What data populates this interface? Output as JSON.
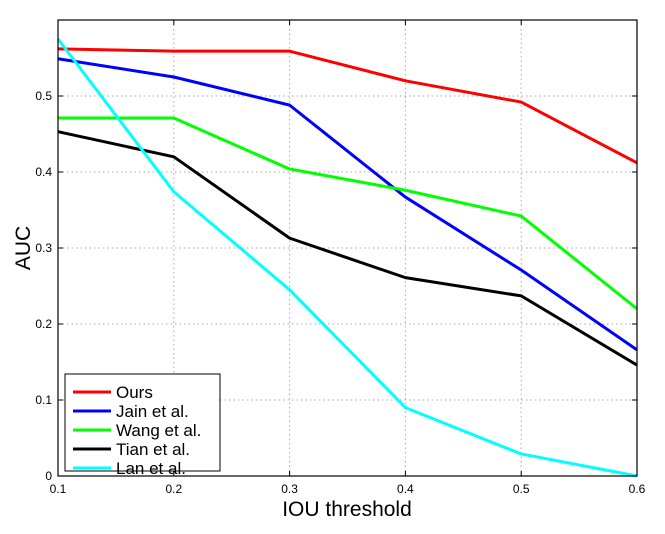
{
  "chart_data": {
    "type": "line",
    "title": "",
    "xlabel": "IOU threshold",
    "ylabel": "AUC",
    "xlim": [
      0.1,
      0.6
    ],
    "ylim": [
      0,
      0.6
    ],
    "grid": true,
    "legend_position": "bottom-left",
    "x": [
      0.1,
      0.2,
      0.3,
      0.4,
      0.5,
      0.6
    ],
    "xticks": [
      "0.1",
      "0.2",
      "0.3",
      "0.4",
      "0.5",
      "0.6"
    ],
    "yticks": [
      "0",
      "0.1",
      "0.2",
      "0.3",
      "0.4",
      "0.5"
    ],
    "series": [
      {
        "name": "Ours",
        "color": "#ff0000",
        "values": [
          0.562,
          0.559,
          0.559,
          0.52,
          0.492,
          0.412
        ]
      },
      {
        "name": "Jain et al.",
        "color": "#0000ff",
        "values": [
          0.549,
          0.525,
          0.488,
          0.367,
          0.271,
          0.166
        ]
      },
      {
        "name": "Wang et al.",
        "color": "#00ff00",
        "values": [
          0.471,
          0.471,
          0.404,
          0.376,
          0.342,
          0.22
        ]
      },
      {
        "name": "Tian et al.",
        "color": "#000000",
        "values": [
          0.453,
          0.42,
          0.313,
          0.261,
          0.237,
          0.146
        ]
      },
      {
        "name": "Lan et al.",
        "color": "#00ffff",
        "values": [
          0.575,
          0.374,
          0.245,
          0.09,
          0.029,
          0.0
        ]
      }
    ]
  }
}
